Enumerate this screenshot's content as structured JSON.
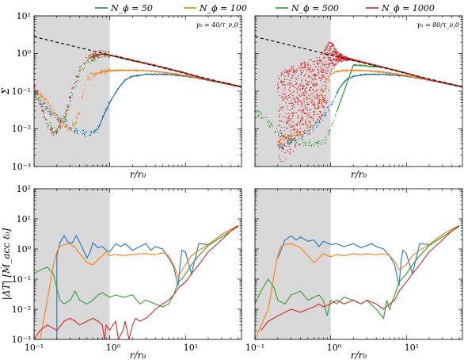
{
  "colors": {
    "N50": "#1f77b4",
    "N100": "#ff7f0e",
    "N500": "#2ca02c",
    "N1000": "#d62728",
    "shade": "#d9d9d9",
    "reference": "#000000"
  },
  "legend": {
    "placement": "top",
    "entries": [
      "N_ϕ = 50",
      "N_ϕ = 100",
      "N_ϕ = 500",
      "N_ϕ = 1000"
    ]
  },
  "chart_data": [
    {
      "type": "scatter",
      "panel": "top-left",
      "annotation": "γ₀ = 40/τ_ν,0",
      "xlabel": "r/r₀",
      "ylabel": "Σ",
      "xscale": "log",
      "yscale": "log",
      "xlim": [
        0.1,
        55
      ],
      "ylim": [
        0.001,
        10
      ],
      "shaded_region": [
        0.1,
        1.0
      ],
      "yticks": [
        "10⁻³",
        "10⁻²",
        "10⁻¹",
        "10⁰",
        "10¹"
      ],
      "reference_line": {
        "style": "dashed",
        "x": [
          0.1,
          55
        ],
        "y": [
          2.8,
          0.13
        ]
      },
      "series": [
        {
          "name": "N_ϕ = 50",
          "x": [
            0.1,
            0.12,
            0.16,
            0.2,
            0.3,
            0.4,
            0.5,
            0.7,
            0.85,
            1.0,
            1.3,
            1.6,
            2.0,
            3.0,
            5.0,
            7.0,
            10.0,
            15.0,
            25.0,
            40.0,
            55.0
          ],
          "y": [
            0.12,
            0.06,
            0.03,
            0.02,
            0.012,
            0.008,
            0.007,
            0.01,
            0.025,
            0.05,
            0.12,
            0.2,
            0.25,
            0.28,
            0.28,
            0.27,
            0.25,
            0.22,
            0.18,
            0.15,
            0.13
          ]
        },
        {
          "name": "N_ϕ = 100",
          "x": [
            0.1,
            0.15,
            0.2,
            0.25,
            0.3,
            0.35,
            0.4,
            0.45,
            0.5,
            0.6,
            0.8,
            1.0,
            1.5,
            2.0,
            3.0,
            5.0,
            10.0,
            20.0,
            40.0,
            55.0
          ],
          "y": [
            0.12,
            0.05,
            0.02,
            0.012,
            0.01,
            0.015,
            0.03,
            0.1,
            0.2,
            0.28,
            0.33,
            0.35,
            0.36,
            0.36,
            0.35,
            0.32,
            0.26,
            0.2,
            0.15,
            0.13
          ]
        },
        {
          "name": "N_ϕ = 500",
          "x": [
            0.1,
            0.12,
            0.15,
            0.18,
            0.2,
            0.25,
            0.3,
            0.4,
            0.5,
            0.7,
            0.85,
            1.0,
            1.5,
            2.0,
            3.0,
            5.0,
            10.0,
            20.0,
            40.0,
            55.0
          ],
          "y": [
            0.1,
            0.05,
            0.015,
            0.009,
            0.009,
            0.015,
            0.05,
            0.3,
            0.6,
            0.9,
            0.95,
            0.9,
            0.75,
            0.65,
            0.55,
            0.43,
            0.3,
            0.2,
            0.15,
            0.13
          ]
        },
        {
          "name": "N_ϕ = 1000",
          "x": [
            0.1,
            0.12,
            0.15,
            0.18,
            0.2,
            0.25,
            0.3,
            0.4,
            0.5,
            0.7,
            0.85,
            1.0,
            1.5,
            2.0,
            3.0,
            5.0,
            10.0,
            20.0,
            40.0,
            55.0
          ],
          "y": [
            0.15,
            0.05,
            0.012,
            0.008,
            0.009,
            0.02,
            0.07,
            0.4,
            0.7,
            0.95,
            1.0,
            0.92,
            0.76,
            0.66,
            0.55,
            0.43,
            0.3,
            0.2,
            0.15,
            0.13
          ]
        }
      ]
    },
    {
      "type": "scatter",
      "panel": "top-right",
      "annotation": "γ₀ = 80/τ_ν,0",
      "xlabel": "r/r₀",
      "ylabel": "",
      "xscale": "log",
      "yscale": "log",
      "xlim": [
        0.1,
        55
      ],
      "ylim": [
        0.001,
        10
      ],
      "shaded_region": [
        0.1,
        1.0
      ],
      "reference_line": {
        "style": "dashed",
        "x": [
          0.1,
          55
        ],
        "y": [
          2.8,
          0.13
        ]
      },
      "series": [
        {
          "name": "N_ϕ = 50",
          "x": [
            0.2,
            0.3,
            0.5,
            0.7,
            1.0,
            1.3,
            1.6,
            2.0,
            3.0,
            5.0,
            10.0,
            20.0,
            40.0,
            55.0
          ],
          "y": [
            0.003,
            0.005,
            0.008,
            0.015,
            0.04,
            0.12,
            0.2,
            0.25,
            0.28,
            0.28,
            0.25,
            0.2,
            0.15,
            0.13
          ]
        },
        {
          "name": "N_ϕ = 100",
          "x": [
            0.2,
            0.3,
            0.5,
            0.7,
            0.9,
            1.0,
            1.2,
            1.5,
            2.0,
            3.0,
            5.0,
            10.0,
            20.0,
            40.0,
            55.0
          ],
          "y": [
            0.004,
            0.006,
            0.01,
            0.05,
            0.2,
            0.28,
            0.33,
            0.35,
            0.36,
            0.35,
            0.32,
            0.26,
            0.2,
            0.15,
            0.13
          ]
        },
        {
          "name": "N_ϕ = 500",
          "x": [
            0.1,
            0.15,
            0.2,
            0.3,
            0.5,
            0.7,
            0.85,
            1.0,
            2.0,
            5.0,
            10.0,
            20.0,
            40.0,
            55.0
          ],
          "y": [
            0.03,
            0.015,
            0.008,
            0.005,
            0.004,
            0.004,
            0.005,
            0.01,
            0.5,
            0.43,
            0.3,
            0.2,
            0.15,
            0.13
          ]
        },
        {
          "name": "N_ϕ = 1000",
          "x": [
            0.2,
            0.3,
            0.4,
            0.5,
            0.6,
            0.7,
            0.8,
            0.9,
            1.0,
            1.2,
            1.5,
            2.0,
            3.0,
            5.0,
            10.0,
            20.0,
            40.0,
            55.0
          ],
          "y": [
            0.3,
            0.45,
            0.55,
            0.65,
            0.75,
            0.9,
            1.1,
            1.8,
            2.5,
            1.2,
            0.85,
            0.7,
            0.56,
            0.43,
            0.3,
            0.2,
            0.15,
            0.13
          ],
          "y_low": [
            0.001,
            0.002,
            0.004,
            0.006,
            0.008,
            0.012,
            0.02,
            0.05,
            0.25,
            0.5,
            0.65,
            0.65,
            0.55,
            0.43,
            0.3,
            0.2,
            0.15,
            0.13
          ]
        }
      ]
    },
    {
      "type": "line",
      "panel": "bottom-left",
      "xlabel": "r/r₀",
      "ylabel": "|ΔT| [Ṁ_acc ℓ₀]",
      "xscale": "log",
      "yscale": "log",
      "xlim": [
        0.1,
        55
      ],
      "ylim": [
        0.001,
        100
      ],
      "shaded_region": [
        0.1,
        1.0
      ],
      "xticks": [
        "10⁻¹",
        "10⁰",
        "10¹"
      ],
      "yticks": [
        "10⁻³",
        "10⁻²",
        "10⁻¹",
        "10⁰",
        "10¹",
        "10²"
      ],
      "series": [
        {
          "name": "N_ϕ = 50",
          "x": [
            0.2,
            0.2,
            0.22,
            0.25,
            0.28,
            0.32,
            0.36,
            0.4,
            0.45,
            0.5,
            0.55,
            0.6,
            0.7,
            0.8,
            0.9,
            1.0,
            1.2,
            1.4,
            1.6,
            2.0,
            2.5,
            3.0,
            3.5,
            4.0,
            5.0,
            6.0,
            7.0,
            8.0,
            8.5,
            9.0,
            10.0,
            12.0,
            15.0,
            20.0,
            30.0,
            40.0,
            50.0
          ],
          "y": [
            0.001,
            0.6,
            1.6,
            2.8,
            1.7,
            1.6,
            2.8,
            1.7,
            0.9,
            0.5,
            0.8,
            1.6,
            1.1,
            1.2,
            0.9,
            0.8,
            1.5,
            1.2,
            1.5,
            0.9,
            1.2,
            1.5,
            0.9,
            1.2,
            1.0,
            0.5,
            0.25,
            0.06,
            0.3,
            0.9,
            0.8,
            0.15,
            1.5,
            1.4,
            3.0,
            4.5,
            6.0
          ]
        },
        {
          "name": "N_ϕ = 100",
          "x": [
            0.12,
            0.15,
            0.18,
            0.2,
            0.22,
            0.25,
            0.3,
            0.35,
            0.4,
            0.5,
            0.6,
            0.7,
            0.8,
            0.9,
            1.0,
            1.2,
            1.5,
            2.0,
            2.5,
            3.0,
            4.0,
            5.0,
            6.0,
            7.0,
            8.0,
            10.0,
            12.0,
            15.0,
            20.0,
            30.0,
            40.0,
            50.0
          ],
          "y": [
            0.001,
            0.02,
            0.3,
            0.8,
            1.2,
            1.4,
            1.5,
            1.1,
            0.7,
            0.35,
            0.3,
            0.45,
            0.6,
            0.8,
            0.6,
            0.65,
            0.6,
            0.65,
            0.7,
            0.7,
            0.65,
            0.75,
            0.6,
            0.3,
            0.12,
            0.3,
            0.6,
            0.9,
            1.4,
            3.0,
            4.5,
            6.0
          ]
        },
        {
          "name": "N_ϕ = 500",
          "x": [
            0.1,
            0.12,
            0.15,
            0.18,
            0.2,
            0.22,
            0.25,
            0.3,
            0.35,
            0.4,
            0.5,
            0.6,
            0.7,
            0.8,
            1.0,
            1.2,
            1.5,
            2.0,
            2.5,
            3.0,
            4.0,
            5.0,
            6.0,
            7.0,
            8.0,
            9.0,
            10.0,
            12.0,
            15.0,
            20.0,
            30.0,
            40.0,
            50.0
          ],
          "y": [
            0.15,
            0.2,
            0.25,
            0.15,
            0.05,
            0.02,
            0.015,
            0.02,
            0.04,
            0.02,
            0.015,
            0.02,
            0.03,
            0.035,
            0.025,
            0.03,
            0.025,
            0.03,
            0.015,
            0.02,
            0.015,
            0.012,
            0.015,
            0.03,
            0.08,
            0.1,
            0.15,
            0.3,
            0.6,
            1.3,
            2.5,
            4.0,
            5.5
          ]
        },
        {
          "name": "N_ϕ = 1000",
          "x": [
            0.1,
            0.12,
            0.15,
            0.2,
            0.25,
            0.3,
            0.35,
            0.4,
            0.5,
            0.6,
            0.7,
            0.8,
            0.85,
            0.9,
            1.0,
            1.1,
            1.2,
            1.3,
            1.5,
            1.6,
            1.8,
            2.0,
            2.2,
            2.5,
            3.0,
            3.5,
            4.0,
            5.0,
            6.0,
            7.0,
            8.0,
            10.0,
            12.0,
            15.0,
            20.0,
            30.0,
            40.0,
            50.0
          ],
          "y": [
            0.001,
            0.002,
            0.003,
            0.002,
            0.004,
            0.005,
            0.004,
            0.003,
            0.004,
            0.005,
            0.004,
            0.003,
            0.001,
            0.003,
            0.002,
            0.003,
            0.004,
            0.001,
            0.002,
            0.004,
            0.001,
            0.003,
            0.005,
            0.004,
            0.005,
            0.007,
            0.01,
            0.015,
            0.02,
            0.03,
            0.05,
            0.08,
            0.15,
            0.3,
            0.8,
            2.0,
            4.0,
            6.0
          ]
        }
      ]
    },
    {
      "type": "line",
      "panel": "bottom-right",
      "xlabel": "r/r₀",
      "ylabel": "",
      "xscale": "log",
      "yscale": "log",
      "xlim": [
        0.1,
        55
      ],
      "ylim": [
        0.001,
        100
      ],
      "shaded_region": [
        0.1,
        1.0
      ],
      "xticks": [
        "10⁻¹",
        "10⁰",
        "10¹"
      ],
      "series": [
        {
          "name": "N_ϕ = 50",
          "x": [
            0.2,
            0.25,
            0.3,
            0.35,
            0.4,
            0.5,
            0.6,
            0.7,
            0.8,
            1.0,
            1.2,
            1.5,
            2.0,
            2.5,
            3.0,
            3.5,
            4.0,
            5.0,
            6.0,
            7.0,
            8.0,
            8.5,
            9.0,
            10.0,
            12.0,
            15.0,
            20.0,
            30.0,
            40.0,
            50.0
          ],
          "y": [
            0.5,
            2.0,
            2.7,
            2.0,
            2.5,
            1.8,
            2.0,
            1.2,
            1.8,
            1.4,
            1.5,
            1.2,
            1.5,
            1.1,
            1.3,
            1.5,
            1.2,
            1.0,
            0.6,
            0.3,
            0.06,
            0.4,
            0.9,
            0.7,
            0.15,
            1.5,
            1.4,
            3.0,
            4.5,
            6.0
          ]
        },
        {
          "name": "N_ϕ = 100",
          "x": [
            0.1,
            0.15,
            0.18,
            0.2,
            0.22,
            0.25,
            0.3,
            0.4,
            0.5,
            0.6,
            0.7,
            0.8,
            1.0,
            1.2,
            1.5,
            2.0,
            2.5,
            3.0,
            4.0,
            5.0,
            6.0,
            7.0,
            8.0,
            10.0,
            12.0,
            15.0,
            20.0,
            30.0,
            40.0,
            50.0
          ],
          "y": [
            0.001,
            0.01,
            0.15,
            0.6,
            1.2,
            1.4,
            1.5,
            1.1,
            0.6,
            0.35,
            0.5,
            0.7,
            0.55,
            0.65,
            0.6,
            0.7,
            0.65,
            0.7,
            0.65,
            0.7,
            0.6,
            0.4,
            0.2,
            0.3,
            0.6,
            0.9,
            1.4,
            3.0,
            4.5,
            6.0
          ]
        },
        {
          "name": "N_ϕ = 500",
          "x": [
            0.1,
            0.12,
            0.15,
            0.18,
            0.2,
            0.25,
            0.3,
            0.4,
            0.5,
            0.6,
            0.7,
            0.8,
            0.9,
            1.0,
            1.2,
            1.5,
            2.0,
            2.5,
            3.0,
            4.0,
            5.0,
            5.5,
            6.0,
            7.0,
            8.0,
            10.0,
            12.0,
            15.0,
            20.0,
            30.0,
            40.0,
            50.0
          ],
          "y": [
            0.015,
            0.04,
            0.1,
            0.05,
            0.02,
            0.015,
            0.03,
            0.04,
            0.02,
            0.025,
            0.03,
            0.02,
            0.006,
            0.02,
            0.015,
            0.025,
            0.02,
            0.015,
            0.02,
            0.01,
            0.005,
            0.02,
            0.01,
            0.03,
            0.08,
            0.15,
            0.3,
            0.6,
            1.3,
            2.5,
            4.0,
            5.5
          ]
        },
        {
          "name": "N_ϕ = 1000",
          "x": [
            0.12,
            0.15,
            0.2,
            0.25,
            0.3,
            0.4,
            0.5,
            0.6,
            0.7,
            0.8,
            1.0,
            1.2,
            1.5,
            2.0,
            2.5,
            3.0,
            4.0,
            5.0,
            6.0,
            7.0,
            8.0,
            10.0,
            12.0,
            15.0,
            20.0,
            30.0,
            40.0,
            50.0
          ],
          "y": [
            0.002,
            0.004,
            0.006,
            0.008,
            0.01,
            0.008,
            0.01,
            0.012,
            0.015,
            0.012,
            0.015,
            0.02,
            0.015,
            0.02,
            0.015,
            0.02,
            0.015,
            0.01,
            0.015,
            0.02,
            0.04,
            0.08,
            0.15,
            0.3,
            0.8,
            2.0,
            4.0,
            6.0
          ]
        }
      ]
    }
  ]
}
